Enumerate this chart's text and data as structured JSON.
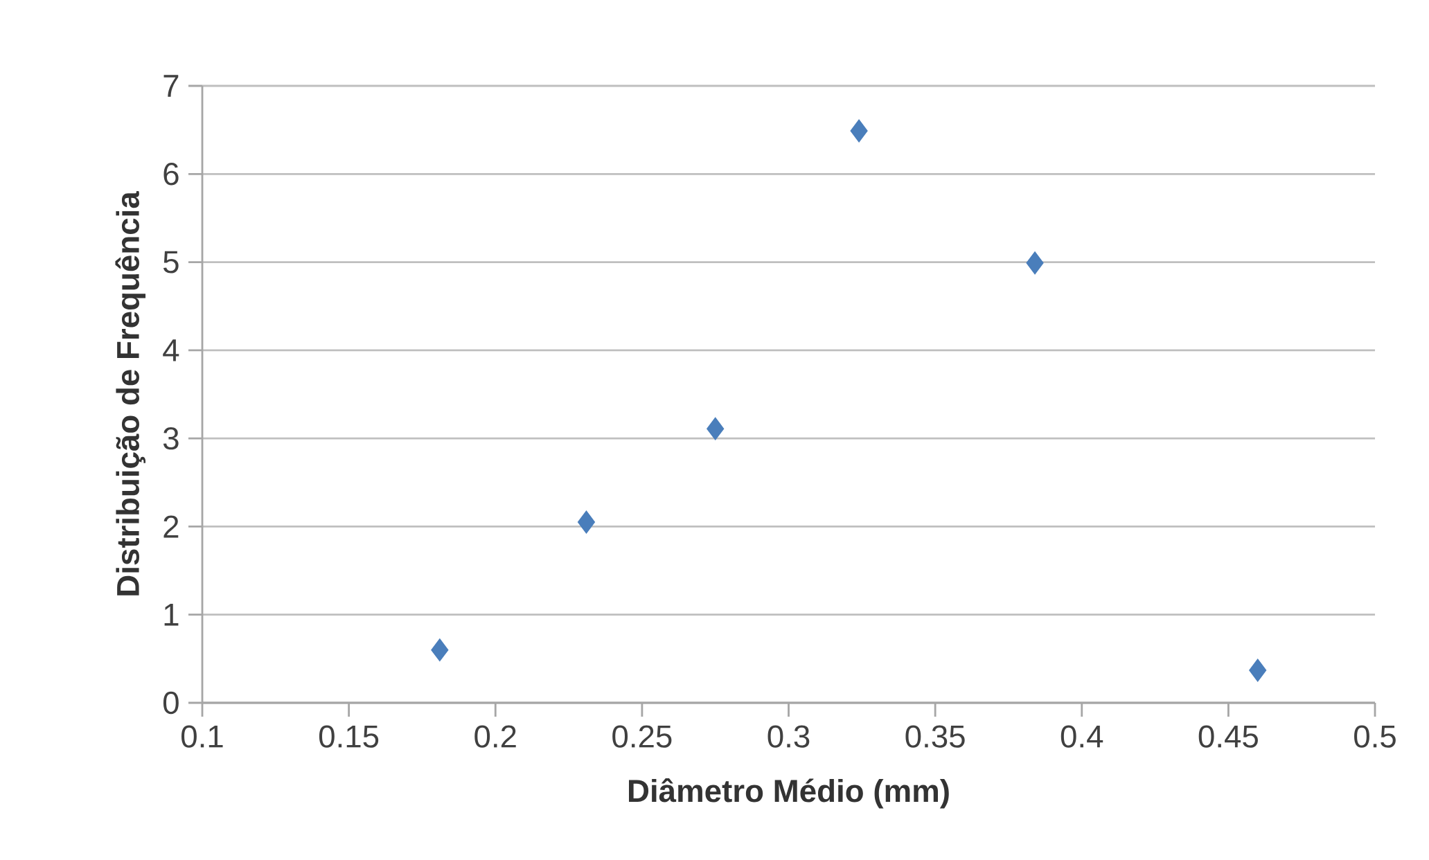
{
  "chart_data": {
    "type": "scatter",
    "xlabel": "Diâmetro Médio (mm)",
    "ylabel": "Distribuição de Frequência",
    "x": [
      0.181,
      0.231,
      0.275,
      0.324,
      0.384,
      0.46
    ],
    "values": [
      0.6,
      2.05,
      3.11,
      6.49,
      4.99,
      0.37
    ],
    "color": "#4a7ebb",
    "marker": "diamond",
    "grid": "y",
    "xlim": [
      0.1,
      0.5
    ],
    "xticks": [
      0.1,
      0.15,
      0.2,
      0.25,
      0.3,
      0.35,
      0.4,
      0.45,
      0.5
    ],
    "ylim": [
      0,
      7
    ],
    "yticks": [
      0,
      1,
      2,
      3,
      4,
      5,
      6,
      7
    ]
  }
}
